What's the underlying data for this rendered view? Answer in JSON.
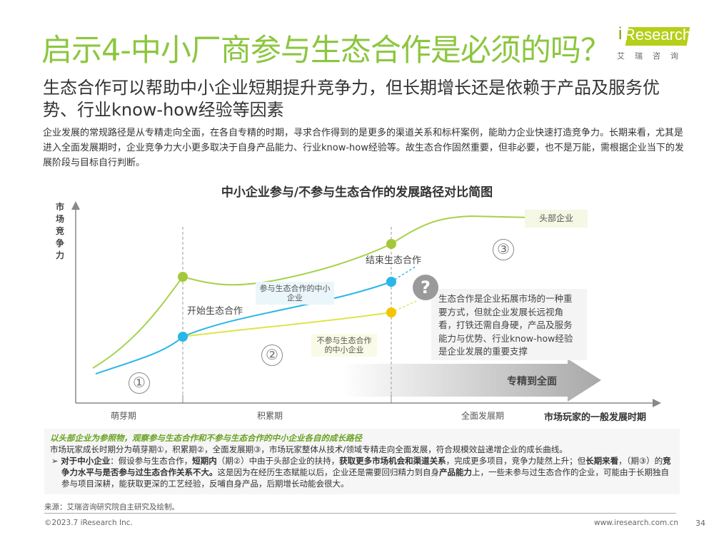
{
  "header": {
    "title": "启示4-中小厂商参与生态合作是必须的吗？",
    "logo_en": "iResearch",
    "logo_cn": "艾瑞咨询"
  },
  "subtitle": "生态合作可以帮助中小企业短期提升竞争力，但长期增长还是依赖于产品及服务优势、行业know-how经验等因素",
  "intro": "企业发展的常规路径是从专精走向全面，在各自专精的时期，寻求合作得到的是更多的渠道关系和标杆案例，能助力企业快速打造竞争力。长期来看，尤其是进入全面发展期时，企业竞争力大小更多取决于自身产品能力、行业know-how经验等。故生态合作固然重要，但非必要，也不是万能，需根据企业当下的发展阶段与目标自行判断。",
  "chart": {
    "title": "中小企业参与/不参与生态合作的发展路径对比简图",
    "ylabel": "市场竞争力",
    "xlabel": "市场玩家的一般发展时期",
    "periods": [
      "萌芽期",
      "积累期",
      "全面发展期"
    ],
    "period_numbers": [
      "①",
      "②",
      "③"
    ],
    "labels": {
      "start": "开始生态合作",
      "end": "结束生态合作",
      "head": "头部企业",
      "participate": "参与生态合作的中小企业",
      "not_participate": "不参与生态合作的中小企业"
    },
    "arrow_label": "专精到全面",
    "callout": "生态合作是企业拓展市场的一种重要方式，但就企业发展长远视角看，打铁还需自身硬，产品及服务能力与优势、行业know-how经验是企业发展的重要支撑",
    "colors": {
      "head": "#a5d24a",
      "participate": "#29b6e8",
      "not_participate": "#e0e84a",
      "start_dot": "#a5c83a",
      "end_dot_yellow": "#f5c400"
    }
  },
  "note": {
    "heading": "以头部企业为参照物，观察参与生态合作和不参与生态合作的中小企业各自的成长路径",
    "line1": "市场玩家成长时期分为萌芽期①，积累期②，全面发展期③，市场玩家整体从技术/领域专精走向全面发展，符合规模效益递增企业的成长曲线。",
    "b_parts": [
      "对于中小企业",
      "：假设参与生态合作，",
      "短期内",
      "（期②）中由于头部企业的扶持，",
      "获取更多市场机会和渠道关系",
      "，完成更多项目，竞争力陡然上升；但",
      "长期来看",
      "，（期③）的",
      "竞争力水平与是否参与过生态合作关系不大。",
      "这是因为在经历生态赋能以后，企业还是需要回归精力到自身",
      "产品能力",
      "上，一些未参与过生态合作的企业，可能由于长期独自参与项目深耕，能获取更深的工艺经验，反哺自身产品，后期增长动能会很大。"
    ]
  },
  "footer": {
    "source": "来源：艾瑞咨询研究院自主研究及绘制。",
    "copyright": "©2023.7 iResearch Inc.",
    "url": "www.iresearch.com.cn",
    "page": "34"
  }
}
